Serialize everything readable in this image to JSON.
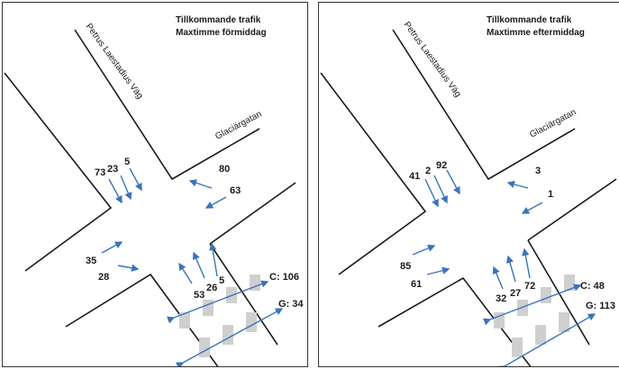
{
  "panels": [
    {
      "title_line1": "Tillkommande trafik",
      "title_line2": "Maxtimme förmiddag",
      "street_north": "Petrus Laestadius Väg",
      "street_east": "Glaciärgatan",
      "north_values": [
        "73",
        "23",
        "5"
      ],
      "east_values": [
        "80",
        "63"
      ],
      "west_values": [
        "35",
        "28"
      ],
      "south_values": [
        "53",
        "26",
        "5"
      ],
      "ped_c": "C: 106",
      "ped_g": "G: 34"
    },
    {
      "title_line1": "Tillkommande trafik",
      "title_line2": "Maxtimme eftermiddag",
      "street_north": "Petrus Laestadius Väg",
      "street_east": "Glaciärgatan",
      "north_values": [
        "41",
        "2",
        "92"
      ],
      "east_values": [
        "3",
        "1"
      ],
      "west_values": [
        "85",
        "61"
      ],
      "south_values": [
        "32",
        "27",
        "72"
      ],
      "ped_c": "C: 48",
      "ped_g": "G: 113"
    }
  ],
  "colors": {
    "arrow": "#3b73b9",
    "road": "#1a1a1a",
    "crossing": "#cfcfcf"
  }
}
